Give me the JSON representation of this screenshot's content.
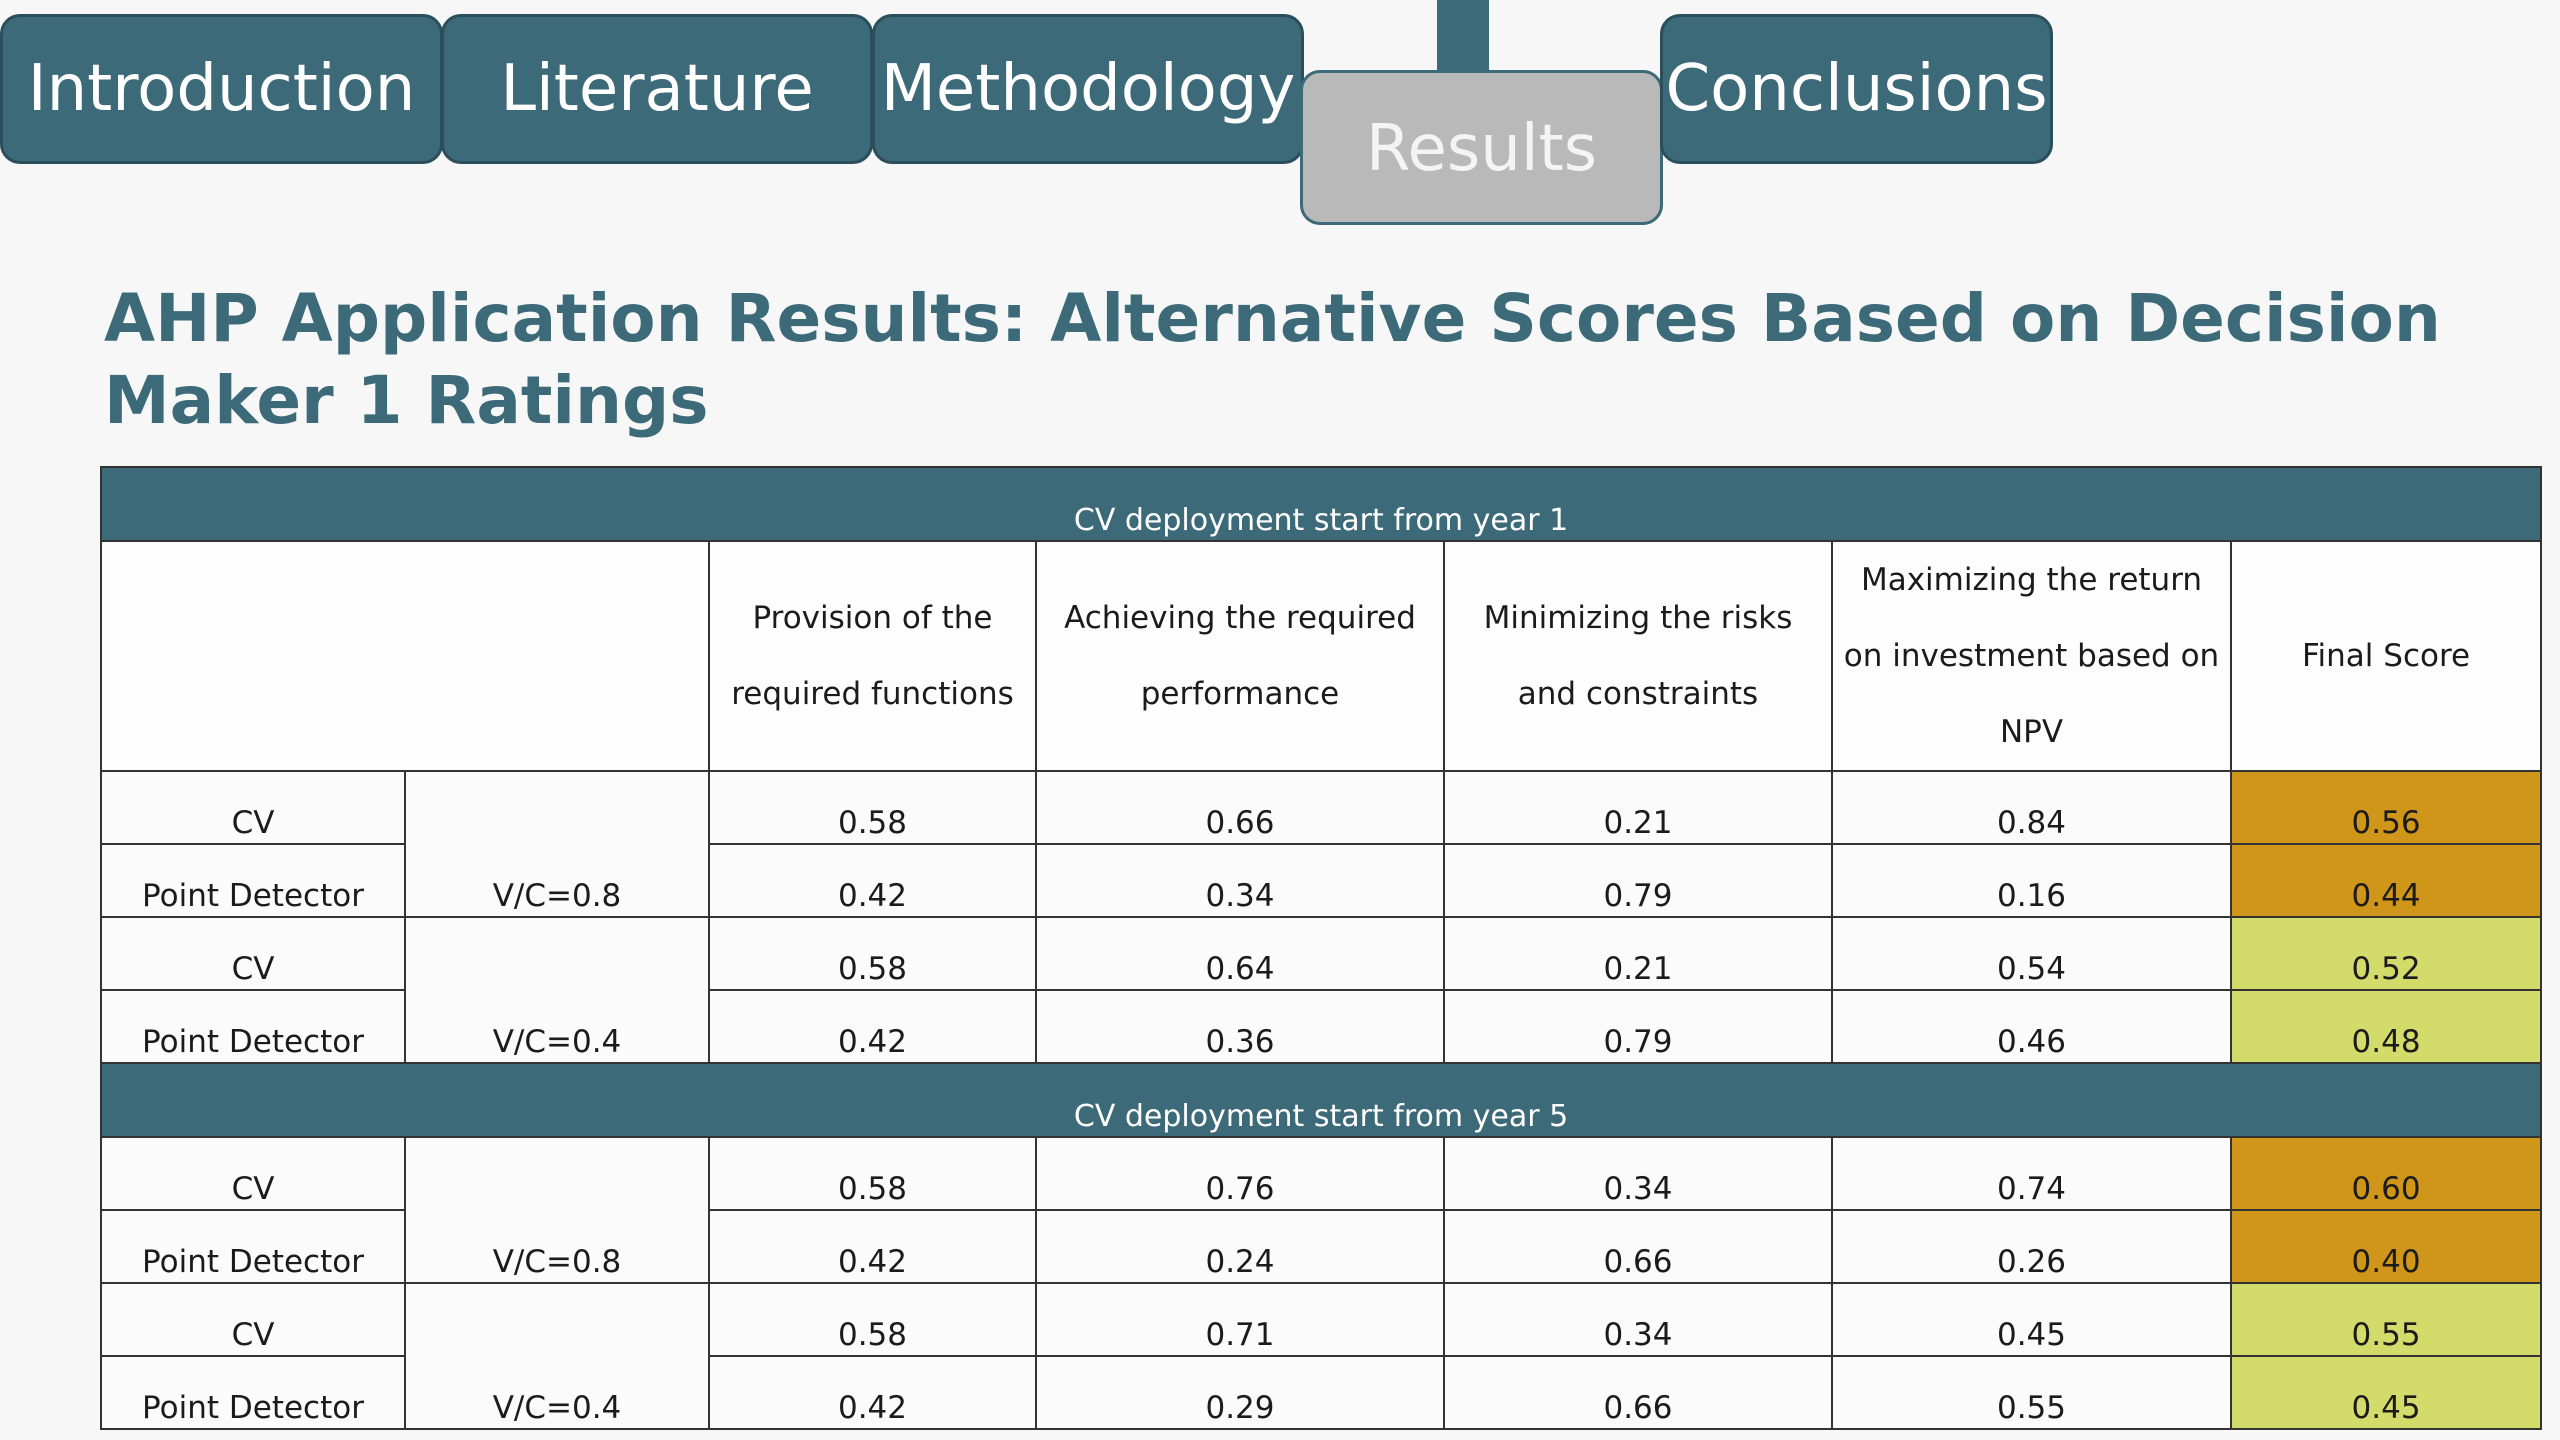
{
  "nav": {
    "tabs": [
      {
        "label": "Introduction",
        "active": false
      },
      {
        "label": "Literature",
        "active": false
      },
      {
        "label": "Methodology",
        "active": false
      },
      {
        "label": "Results",
        "active": true
      },
      {
        "label": "Conclusions",
        "active": false
      }
    ]
  },
  "slide": {
    "title": "AHP Application Results: Alternative Scores Based on Decision Maker 1 Ratings"
  },
  "colors": {
    "accent": "#3c6a78",
    "highlight_high": "#cf961a",
    "highlight_mid": "#d3db6a",
    "active_tab": "#b9b9b9"
  },
  "table": {
    "headers": [
      "Provision of the required functions",
      "Achieving the required performance",
      "Minimizing the risks and constraints",
      "Maximizing the return on investment based on NPV",
      "Final Score"
    ],
    "sections": [
      {
        "label": "CV deployment start from year 1",
        "groups": [
          {
            "scenario": "V/C=0.8",
            "rows": [
              {
                "alternative": "CV",
                "values": [
                  "0.58",
                  "0.66",
                  "0.21",
                  "0.84"
                ],
                "final": "0.56"
              },
              {
                "alternative": "Point Detector",
                "values": [
                  "0.42",
                  "0.34",
                  "0.79",
                  "0.16"
                ],
                "final": "0.44"
              }
            ]
          },
          {
            "scenario": "V/C=0.4",
            "rows": [
              {
                "alternative": "CV",
                "values": [
                  "0.58",
                  "0.64",
                  "0.21",
                  "0.54"
                ],
                "final": "0.52"
              },
              {
                "alternative": "Point Detector",
                "values": [
                  "0.42",
                  "0.36",
                  "0.79",
                  "0.46"
                ],
                "final": "0.48"
              }
            ]
          }
        ]
      },
      {
        "label": "CV deployment start from year 5",
        "groups": [
          {
            "scenario": "V/C=0.8",
            "rows": [
              {
                "alternative": "CV",
                "values": [
                  "0.58",
                  "0.76",
                  "0.34",
                  "0.74"
                ],
                "final": "0.60"
              },
              {
                "alternative": "Point Detector",
                "values": [
                  "0.42",
                  "0.24",
                  "0.66",
                  "0.26"
                ],
                "final": "0.40"
              }
            ]
          },
          {
            "scenario": "V/C=0.4",
            "rows": [
              {
                "alternative": "CV",
                "values": [
                  "0.58",
                  "0.71",
                  "0.34",
                  "0.45"
                ],
                "final": "0.55"
              },
              {
                "alternative": "Point Detector",
                "values": [
                  "0.42",
                  "0.29",
                  "0.66",
                  "0.55"
                ],
                "final": "0.45"
              }
            ]
          }
        ]
      }
    ]
  }
}
